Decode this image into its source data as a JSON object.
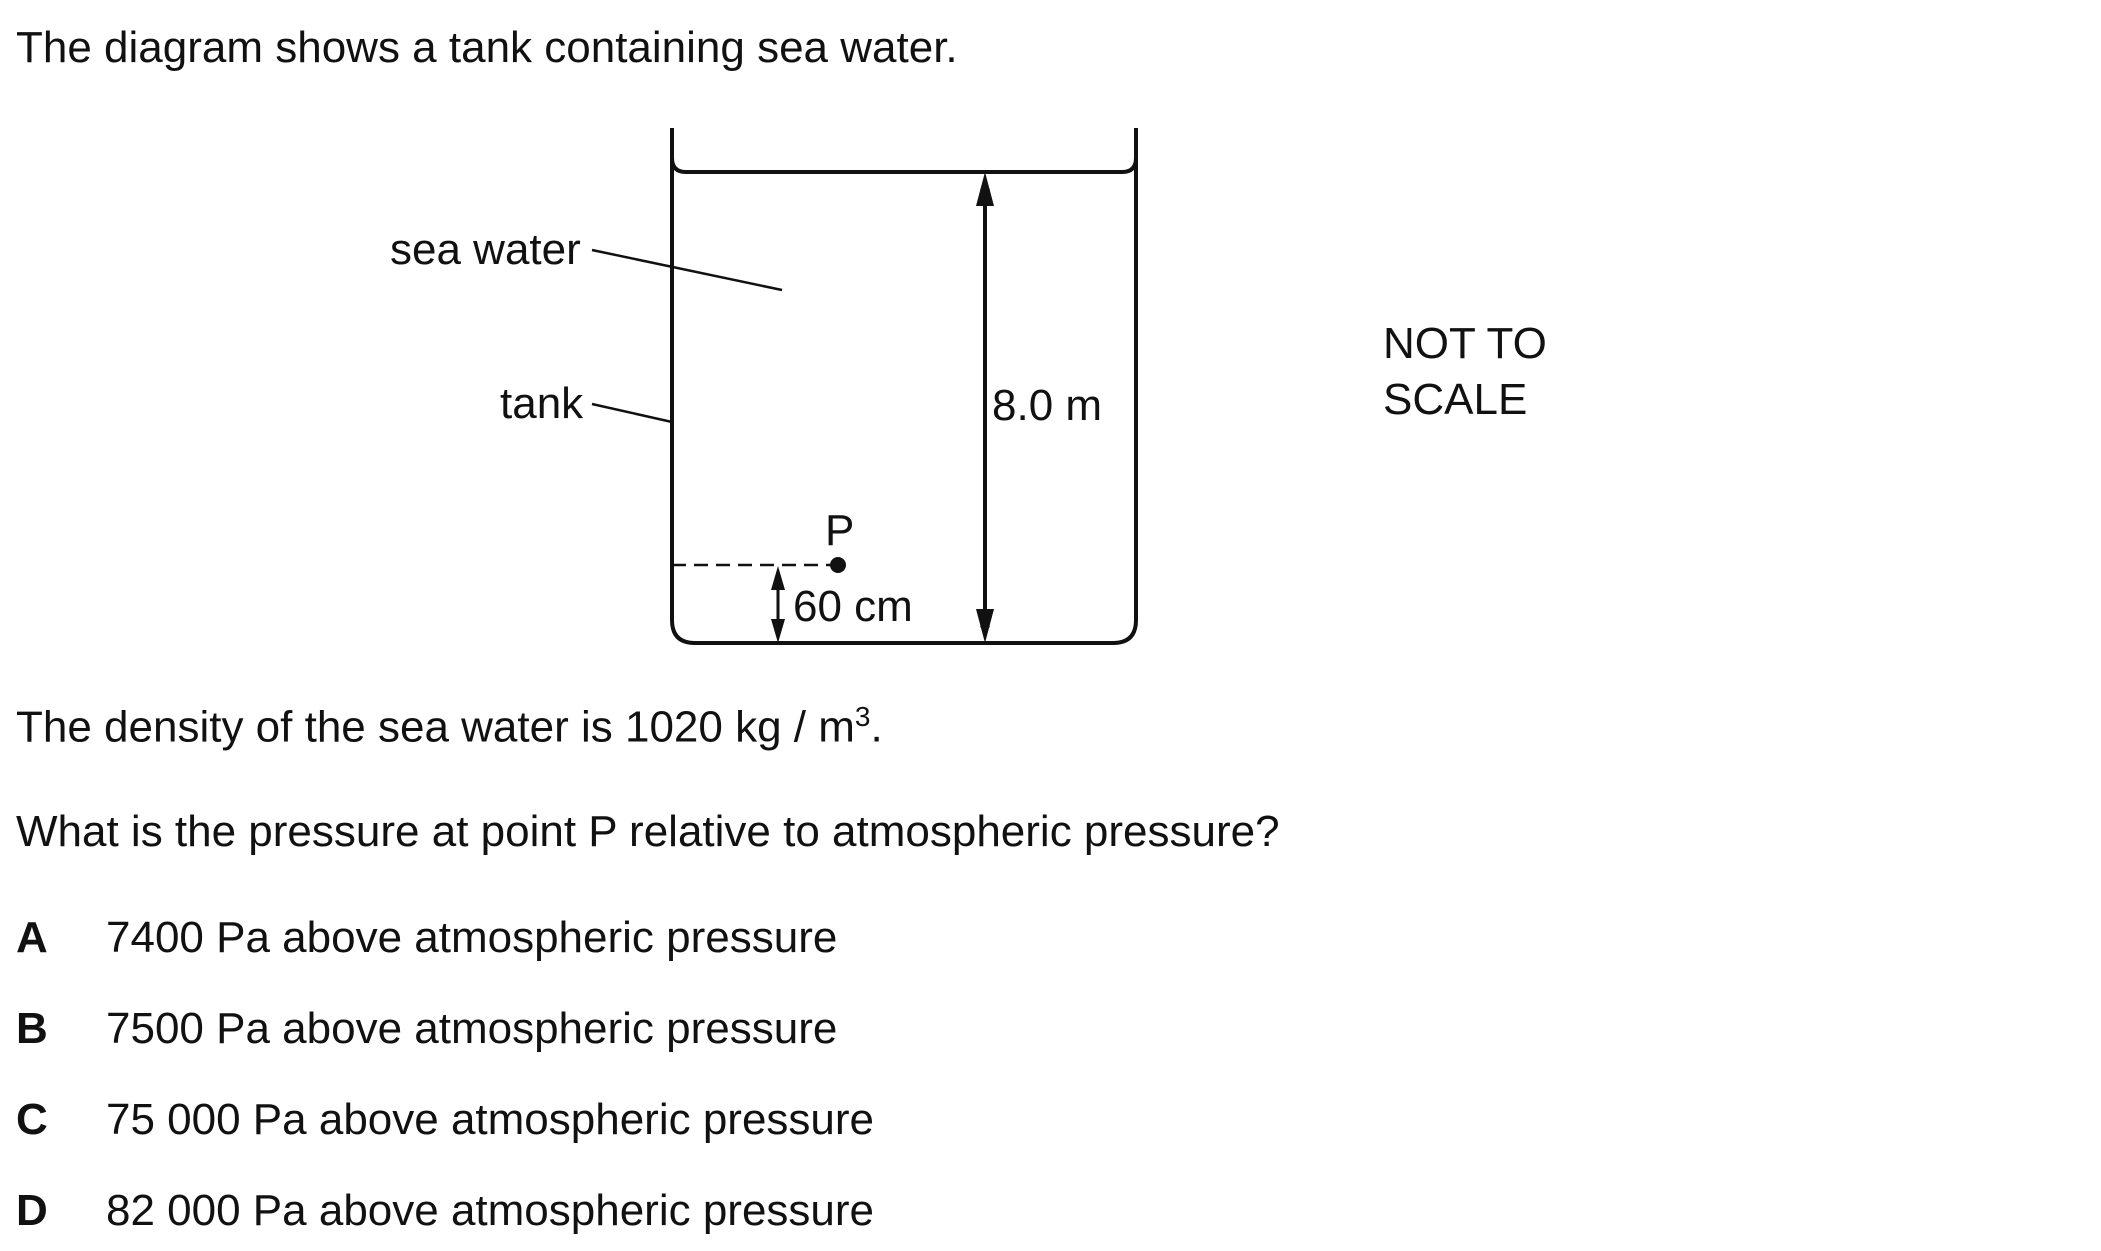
{
  "question": {
    "intro": "The diagram shows a tank containing sea water.",
    "density_prefix": "The density of the sea water is 1020 kg / m",
    "density_exponent": "3",
    "density_suffix": ".",
    "prompt": "What is the pressure at point P relative to atmospheric pressure?"
  },
  "diagram": {
    "label_sea_water": "sea water",
    "label_tank": "tank",
    "label_height": "8.0 m",
    "label_point": "P",
    "label_depth": "60 cm",
    "not_to_scale_line1": "NOT TO",
    "not_to_scale_line2": "SCALE"
  },
  "options": [
    {
      "letter": "A",
      "text": "7400 Pa above atmospheric pressure"
    },
    {
      "letter": "B",
      "text": "7500 Pa above atmospheric pressure"
    },
    {
      "letter": "C",
      "text": "75 000 Pa above atmospheric pressure"
    },
    {
      "letter": "D",
      "text": "82 000 Pa above atmospheric pressure"
    }
  ]
}
